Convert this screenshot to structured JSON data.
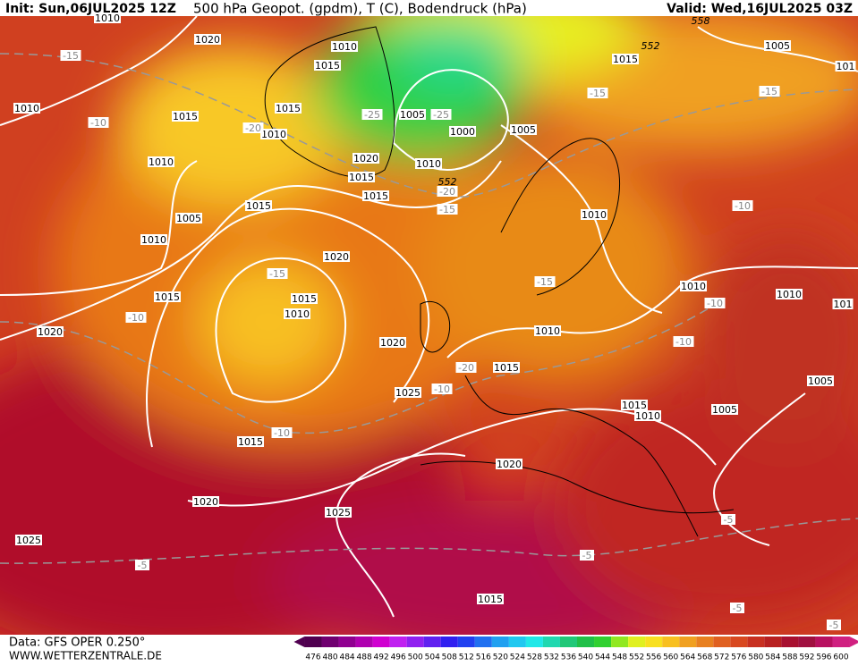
{
  "header": {
    "init": "Init: Sun,06JUL2025 12Z",
    "title": "500 hPa Geopot. (gpdm), T (C), Bodendruck (hPa)",
    "valid": "Valid: Wed,16JUL2025 03Z"
  },
  "map": {
    "isobar_labels": [
      "1010",
      "1020",
      "1010",
      "1015",
      "1015",
      "1005",
      "101",
      "1010",
      "1015",
      "1015",
      "1010",
      "1005",
      "1000",
      "1005",
      "1010",
      "1020",
      "1010",
      "1015",
      "1015",
      "1015",
      "1005",
      "1010",
      "1010",
      "1020",
      "1015",
      "1015",
      "1010",
      "1010",
      "1010",
      "101",
      "1020",
      "1010",
      "1020",
      "1015",
      "1025",
      "1015",
      "1010",
      "1005",
      "1005",
      "1015",
      "1020",
      "1020",
      "1025",
      "1025",
      "1015"
    ],
    "temperature_labels": [
      "-15",
      "-10",
      "-15",
      "-15",
      "-25",
      "-25",
      "-20",
      "-20",
      "-15",
      "-10",
      "-15",
      "-15",
      "-10",
      "-10",
      "-10",
      "-20",
      "-10",
      "-10",
      "-5",
      "-5",
      "-5",
      "-5",
      "-5"
    ],
    "height_labels": [
      "552",
      "552",
      "558"
    ]
  },
  "scale": {
    "labels": [
      476,
      480,
      484,
      488,
      492,
      496,
      500,
      504,
      508,
      512,
      516,
      520,
      524,
      528,
      532,
      536,
      540,
      544,
      548,
      552,
      556,
      560,
      564,
      568,
      572,
      576,
      580,
      584,
      588,
      592,
      596,
      600
    ],
    "colors": [
      "#500050",
      "#700070",
      "#900090",
      "#b000b0",
      "#d000d0",
      "#c020f0",
      "#9020f0",
      "#6020f0",
      "#3020f0",
      "#2040f0",
      "#2070f0",
      "#20a0f0",
      "#20c8f0",
      "#20e8e8",
      "#20d8b0",
      "#20c878",
      "#20c048",
      "#30d030",
      "#90e820",
      "#e0f020",
      "#f8e020",
      "#f8c020",
      "#f0a020",
      "#e88020",
      "#e06020",
      "#d84820",
      "#c83020",
      "#b82020",
      "#a81030",
      "#a01040",
      "#b81060",
      "#d02080"
    ]
  },
  "footer": {
    "data": "Data: GFS OPER 0.250°",
    "site": "WWW.WETTERZENTRALE.DE"
  }
}
